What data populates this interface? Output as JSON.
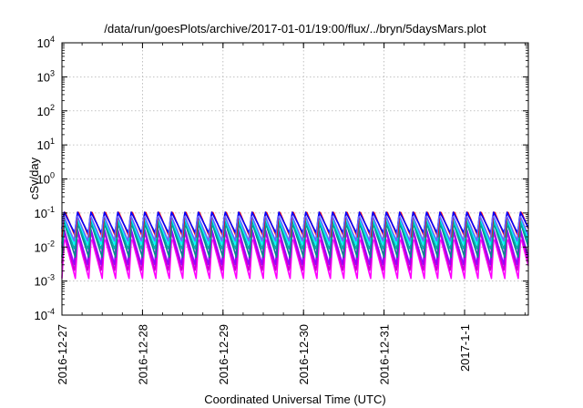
{
  "chart_data": {
    "type": "line",
    "title": "/data/run/goesPlots/archive/2017-01-01/19:00/flux/../bryn/5daysMars.plot",
    "xlabel": "Coordinated Universal Time (UTC)",
    "ylabel": "cSv/day",
    "y_scale": "log",
    "ylim": [
      0.0001,
      10000
    ],
    "y_ticks": [
      {
        "base": "10",
        "exp": "-4"
      },
      {
        "base": "10",
        "exp": "-3"
      },
      {
        "base": "10",
        "exp": "-2"
      },
      {
        "base": "10",
        "exp": "-1"
      },
      {
        "base": "10",
        "exp": "0"
      },
      {
        "base": "10",
        "exp": "1"
      },
      {
        "base": "10",
        "exp": "2"
      },
      {
        "base": "10",
        "exp": "3"
      },
      {
        "base": "10",
        "exp": "4"
      }
    ],
    "xlim": [
      "2016-12-27T00:00",
      "2017-01-01T19:00"
    ],
    "x_ticks": [
      "2016-12-27",
      "2016-12-28",
      "2016-12-29",
      "2016-12-30",
      "2016-12-31",
      "2017-1-1"
    ],
    "grid": true,
    "oscillation_period_hours": 4,
    "series": [
      {
        "color": "#ff00ff",
        "peak": 0.02,
        "trough": 0.0012
      },
      {
        "color": "#cc00cc",
        "peak": 0.03,
        "trough": 0.0018
      },
      {
        "color": "#9900ff",
        "peak": 0.04,
        "trough": 0.003
      },
      {
        "color": "#008b8b",
        "peak": 0.05,
        "trough": 0.005
      },
      {
        "color": "#00aaaa",
        "peak": 0.06,
        "trough": 0.008
      },
      {
        "color": "#00ffff",
        "peak": 0.08,
        "trough": 0.012
      },
      {
        "color": "#ff0000",
        "peak": 0.12,
        "trough": 0.02
      },
      {
        "color": "#0000ff",
        "peak": 0.11,
        "trough": 0.025
      },
      {
        "color": "#6666ff",
        "peak": 0.09,
        "trough": 0.015
      }
    ]
  }
}
